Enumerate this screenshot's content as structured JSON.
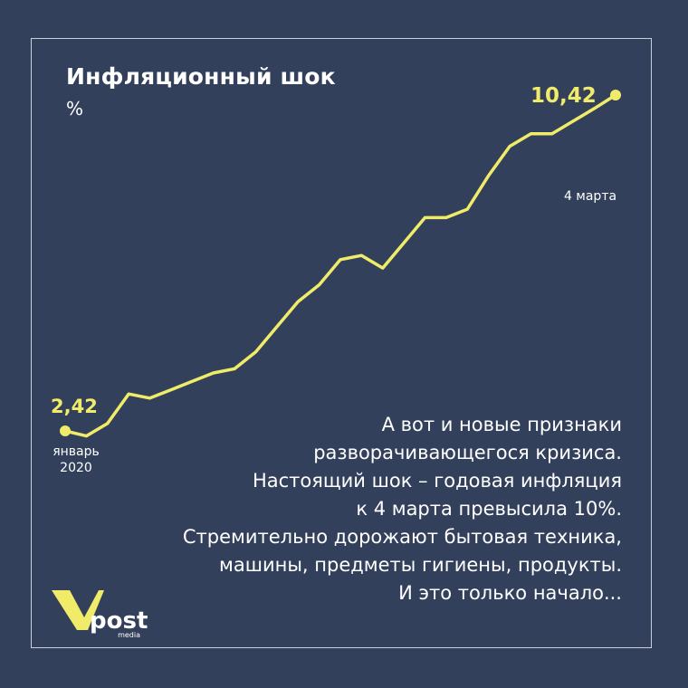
{
  "title": "Инфляционный шок",
  "unit": "%",
  "body_lines": [
    "А вот и новые признаки",
    "разворачивающегося кризиса.",
    "Настоящий шок – годовая инфляция",
    "к 4 марта превысила 10%.",
    "Стремительно дорожают бытовая техника,",
    "машины, предметы гигиены, продукты.",
    "И это только начало..."
  ],
  "logo": {
    "text": "post",
    "subtext": "media"
  },
  "colors": {
    "background": "#32405c",
    "line": "#f0ec6a",
    "text": "#ffffff"
  },
  "chart_data": {
    "type": "line",
    "title": "Инфляционный шок",
    "ylabel": "%",
    "grid": false,
    "legend": "none",
    "series": [
      {
        "values": [
          2.42,
          2.3,
          2.6,
          3.3,
          3.2,
          3.4,
          3.6,
          3.8,
          3.9,
          4.3,
          4.9,
          5.5,
          5.9,
          6.5,
          6.6,
          6.3,
          6.9,
          7.5,
          7.5,
          7.7,
          8.5,
          9.2,
          9.5,
          9.5,
          9.8,
          10.1,
          10.42
        ]
      }
    ],
    "start_label": {
      "value": "2,42",
      "date": "январь\n2020"
    },
    "end_label": {
      "value": "10,42",
      "date": "4 марта"
    }
  }
}
